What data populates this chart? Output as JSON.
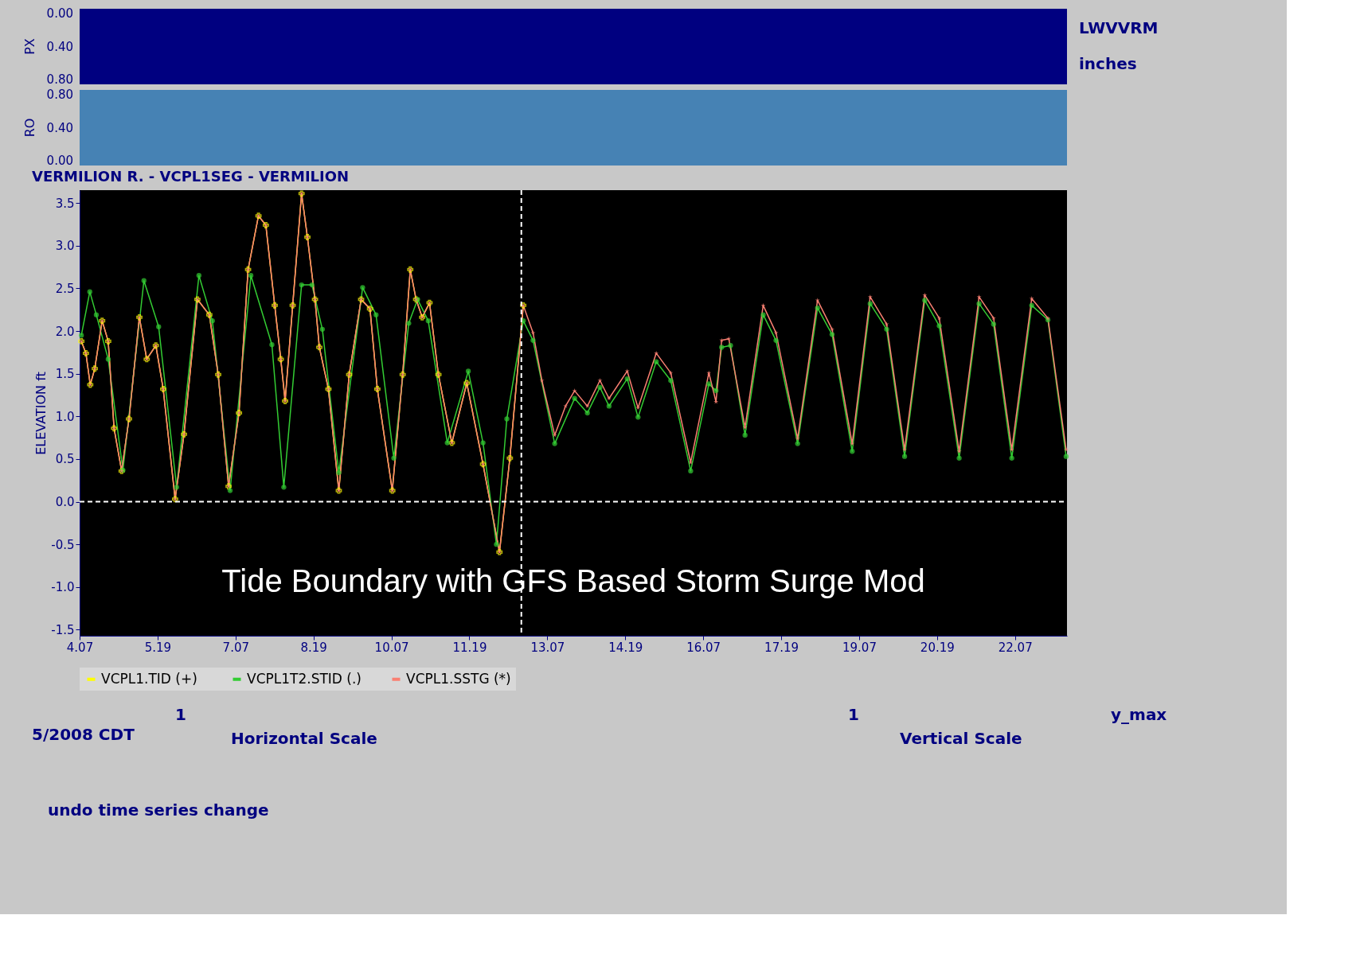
{
  "chart_data": [
    {
      "type": "other",
      "ylabel": "PX",
      "annotations": [
        "0.00",
        "0.40",
        "0.80",
        "LWVVRM",
        "inches"
      ]
    },
    {
      "type": "other",
      "ylabel": "RO",
      "annotations": [
        "0.80",
        "0.40",
        "0.00"
      ]
    },
    {
      "type": "line",
      "title": "VERMILION R.   - VCPL1SEG -  VERMILION",
      "ylabel": "ELEVATION ft",
      "xlim": [
        "2008-05-04T07:00",
        "2008-05-23T07:00"
      ],
      "xticks": [
        {
          "value": "2008-05-04T07:00",
          "label": "4.07"
        },
        {
          "value": "2008-05-05T19:00",
          "label": "5.19"
        },
        {
          "value": "2008-05-07T07:00",
          "label": "7.07"
        },
        {
          "value": "2008-05-08T19:00",
          "label": "8.19"
        },
        {
          "value": "2008-05-10T07:00",
          "label": "10.07"
        },
        {
          "value": "2008-05-11T19:00",
          "label": "11.19"
        },
        {
          "value": "2008-05-13T07:00",
          "label": "13.07"
        },
        {
          "value": "2008-05-14T19:00",
          "label": "14.19"
        },
        {
          "value": "2008-05-16T07:00",
          "label": "16.07"
        },
        {
          "value": "2008-05-17T19:00",
          "label": "17.19"
        },
        {
          "value": "2008-05-19T07:00",
          "label": "19.07"
        },
        {
          "value": "2008-05-20T19:00",
          "label": "20.19"
        },
        {
          "value": "2008-05-22T07:00",
          "label": "22.07"
        }
      ],
      "ylim": [
        -1.57,
        3.65
      ],
      "yticks": [
        {
          "value": -1.5,
          "label": "-1.5"
        },
        {
          "value": -1,
          "label": "-1.0"
        },
        {
          "value": -0.5,
          "label": "-0.5"
        },
        {
          "value": 0,
          "label": "0.0"
        },
        {
          "value": 0.5,
          "label": "0.5"
        },
        {
          "value": 1,
          "label": "1.0"
        },
        {
          "value": 1.5,
          "label": "1.5"
        },
        {
          "value": 2,
          "label": "2.0"
        },
        {
          "value": 2.5,
          "label": "2.5"
        },
        {
          "value": 3,
          "label": "3.0"
        },
        {
          "value": 3.5,
          "label": "3.5"
        }
      ],
      "grid": false,
      "legend": "bottom",
      "line_style": "solid",
      "ref_lines": [
        {
          "axis": "y",
          "value": 0,
          "color": "#ffffff",
          "line_style": "dashed"
        },
        {
          "axis": "x",
          "value": "2008-05-12T19:00",
          "color": "#ffffff",
          "line_style": "dashed"
        }
      ],
      "series": [
        {
          "name": "VCPL1.TID  (+)",
          "color": "#ffff00",
          "marker": "cross",
          "x": [
            "2008-05-04T07:48",
            "2008-05-04T09:54",
            "2008-05-04T11:54",
            "2008-05-04T14:00",
            "2008-05-04T17:24",
            "2008-05-04T20:12",
            "2008-05-04T22:54",
            "2008-05-05T02:24",
            "2008-05-05T05:48",
            "2008-05-05T10:36",
            "2008-05-05T14:00",
            "2008-05-05T18:12",
            "2008-05-05T21:36",
            "2008-05-06T03:06",
            "2008-05-06T07:12",
            "2008-05-06T13:24",
            "2008-05-06T18:54",
            "2008-05-06T23:00",
            "2008-05-07T03:48",
            "2008-05-07T08:36",
            "2008-05-07T12:48",
            "2008-05-07T17:36",
            "2008-05-07T21:00",
            "2008-05-08T01:06",
            "2008-05-08T03:54",
            "2008-05-08T05:54",
            "2008-05-08T09:24",
            "2008-05-08T13:30",
            "2008-05-08T16:12",
            "2008-05-08T19:42",
            "2008-05-08T21:42",
            "2008-05-09T01:54",
            "2008-05-09T06:42",
            "2008-05-09T11:30",
            "2008-05-09T17:00",
            "2008-05-09T21:06",
            "2008-05-10T00:30",
            "2008-05-10T07:24",
            "2008-05-10T12:12",
            "2008-05-10T15:42",
            "2008-05-10T18:24",
            "2008-05-10T21:12",
            "2008-05-11T00:36",
            "2008-05-11T04:42",
            "2008-05-11T10:54",
            "2008-05-11T17:48",
            "2008-05-12T01:18",
            "2008-05-12T08:54",
            "2008-05-12T13:42",
            "2008-05-12T19:54"
          ],
          "values": [
            1.88,
            1.74,
            1.37,
            1.56,
            2.12,
            1.88,
            0.86,
            0.36,
            0.97,
            2.16,
            1.67,
            1.83,
            1.32,
            0.03,
            0.79,
            2.37,
            2.19,
            1.49,
            0.18,
            1.04,
            2.72,
            3.35,
            3.24,
            2.3,
            1.67,
            1.18,
            2.3,
            3.61,
            3.1,
            2.37,
            1.81,
            1.32,
            0.13,
            1.49,
            2.37,
            2.26,
            1.32,
            0.13,
            1.49,
            2.72,
            2.37,
            2.16,
            2.33,
            1.49,
            0.69,
            1.39,
            0.44,
            -0.59,
            0.51,
            2.3
          ]
        },
        {
          "name": "VCPL1T2.STID (.)",
          "color": "#33cc33",
          "marker": "circle",
          "x": [
            "2008-05-04T07:48",
            "2008-05-04T11:42",
            "2008-05-04T14:42",
            "2008-05-04T20:12",
            "2008-05-05T03:00",
            "2008-05-05T12:42",
            "2008-05-05T19:30",
            "2008-05-06T03:48",
            "2008-05-06T14:06",
            "2008-05-06T20:18",
            "2008-05-07T04:30",
            "2008-05-07T14:06",
            "2008-05-07T23:48",
            "2008-05-08T05:18",
            "2008-05-08T13:30",
            "2008-05-08T18:18",
            "2008-05-08T23:06",
            "2008-05-09T06:42",
            "2008-05-09T17:42",
            "2008-05-09T23:54",
            "2008-05-10T08:06",
            "2008-05-10T15:00",
            "2008-05-10T19:06",
            "2008-05-11T00:00",
            "2008-05-11T08:48",
            "2008-05-11T18:30",
            "2008-05-12T01:18",
            "2008-05-12T07:30",
            "2008-05-12T12:18",
            "2008-05-12T19:54",
            "2008-05-13T00:24",
            "2008-05-13T10:24",
            "2008-05-13T19:36",
            "2008-05-14T01:30",
            "2008-05-14T07:18",
            "2008-05-14T11:30",
            "2008-05-14T19:54",
            "2008-05-15T00:54",
            "2008-05-15T09:18",
            "2008-05-15T16:00",
            "2008-05-16T01:12",
            "2008-05-16T09:36",
            "2008-05-16T12:54",
            "2008-05-16T15:30",
            "2008-05-16T19:36",
            "2008-05-17T02:18",
            "2008-05-17T10:42",
            "2008-05-17T16:36",
            "2008-05-18T02:36",
            "2008-05-18T11:48",
            "2008-05-18T18:30",
            "2008-05-19T03:48",
            "2008-05-19T12:06",
            "2008-05-19T19:42",
            "2008-05-20T04:00",
            "2008-05-20T13:18",
            "2008-05-20T20:00",
            "2008-05-21T05:12",
            "2008-05-21T14:24",
            "2008-05-21T21:06",
            "2008-05-22T05:30",
            "2008-05-22T14:42",
            "2008-05-22T22:12",
            "2008-05-23T06:36"
          ],
          "values": [
            1.95,
            2.46,
            2.19,
            1.67,
            0.37,
            2.59,
            2.05,
            0.17,
            2.65,
            2.12,
            0.13,
            2.65,
            1.84,
            0.17,
            2.54,
            2.54,
            2.02,
            0.34,
            2.51,
            2.19,
            0.51,
            2.09,
            2.37,
            2.12,
            0.69,
            1.53,
            0.69,
            -0.5,
            0.97,
            2.12,
            1.89,
            0.68,
            1.21,
            1.04,
            1.34,
            1.12,
            1.44,
            0.99,
            1.64,
            1.42,
            0.36,
            1.38,
            1.3,
            1.81,
            1.83,
            0.78,
            2.19,
            1.89,
            0.68,
            2.27,
            1.96,
            0.59,
            2.32,
            2.02,
            0.53,
            2.36,
            2.06,
            0.51,
            2.32,
            2.08,
            0.51,
            2.3,
            2.13,
            0.53
          ]
        },
        {
          "name": "VCPL1.SSTG (*)",
          "color": "#fa8072",
          "marker": "star",
          "x": [
            "2008-05-04T07:48",
            "2008-05-04T09:54",
            "2008-05-04T11:54",
            "2008-05-04T14:00",
            "2008-05-04T17:24",
            "2008-05-04T20:12",
            "2008-05-04T22:54",
            "2008-05-05T02:24",
            "2008-05-05T05:48",
            "2008-05-05T10:36",
            "2008-05-05T14:00",
            "2008-05-05T18:12",
            "2008-05-05T21:36",
            "2008-05-06T03:06",
            "2008-05-06T07:12",
            "2008-05-06T13:24",
            "2008-05-06T18:54",
            "2008-05-06T23:00",
            "2008-05-07T03:48",
            "2008-05-07T08:36",
            "2008-05-07T12:48",
            "2008-05-07T17:36",
            "2008-05-07T21:00",
            "2008-05-08T01:06",
            "2008-05-08T03:54",
            "2008-05-08T05:54",
            "2008-05-08T09:24",
            "2008-05-08T13:30",
            "2008-05-08T16:12",
            "2008-05-08T19:42",
            "2008-05-08T21:42",
            "2008-05-09T01:54",
            "2008-05-09T06:42",
            "2008-05-09T11:30",
            "2008-05-09T17:00",
            "2008-05-09T21:06",
            "2008-05-10T00:30",
            "2008-05-10T07:24",
            "2008-05-10T12:12",
            "2008-05-10T15:42",
            "2008-05-10T18:24",
            "2008-05-10T21:12",
            "2008-05-11T00:36",
            "2008-05-11T04:42",
            "2008-05-11T10:54",
            "2008-05-11T17:48",
            "2008-05-12T01:18",
            "2008-05-12T08:54",
            "2008-05-12T13:42",
            "2008-05-12T19:54",
            "2008-05-13T00:24",
            "2008-05-13T04:30",
            "2008-05-13T10:24",
            "2008-05-13T15:24",
            "2008-05-13T19:36",
            "2008-05-14T01:30",
            "2008-05-14T07:18",
            "2008-05-14T11:30",
            "2008-05-14T19:54",
            "2008-05-15T00:54",
            "2008-05-15T09:18",
            "2008-05-15T16:00",
            "2008-05-16T01:12",
            "2008-05-16T09:36",
            "2008-05-16T12:54",
            "2008-05-16T15:30",
            "2008-05-16T18:48",
            "2008-05-17T02:18",
            "2008-05-17T10:42",
            "2008-05-17T16:36",
            "2008-05-18T02:36",
            "2008-05-18T11:48",
            "2008-05-18T18:30",
            "2008-05-19T03:48",
            "2008-05-19T12:06",
            "2008-05-19T19:42",
            "2008-05-20T04:00",
            "2008-05-20T13:18",
            "2008-05-20T20:00",
            "2008-05-21T05:12",
            "2008-05-21T14:24",
            "2008-05-21T21:06",
            "2008-05-22T05:30",
            "2008-05-22T14:42",
            "2008-05-22T22:12",
            "2008-05-23T06:36"
          ],
          "values": [
            1.88,
            1.74,
            1.37,
            1.56,
            2.12,
            1.88,
            0.86,
            0.36,
            0.97,
            2.16,
            1.67,
            1.83,
            1.32,
            0.03,
            0.79,
            2.37,
            2.19,
            1.49,
            0.18,
            1.04,
            2.72,
            3.35,
            3.24,
            2.3,
            1.67,
            1.18,
            2.3,
            3.61,
            3.1,
            2.37,
            1.81,
            1.32,
            0.13,
            1.49,
            2.37,
            2.26,
            1.32,
            0.13,
            1.49,
            2.72,
            2.37,
            2.16,
            2.33,
            1.49,
            0.69,
            1.39,
            0.44,
            -0.59,
            0.51,
            2.3,
            1.98,
            1.42,
            0.78,
            1.12,
            1.3,
            1.12,
            1.42,
            1.21,
            1.53,
            1.1,
            1.74,
            1.51,
            0.46,
            1.51,
            1.17,
            1.89,
            1.91,
            0.87,
            2.3,
            1.98,
            0.74,
            2.36,
            2.02,
            0.68,
            2.4,
            2.08,
            0.61,
            2.42,
            2.15,
            0.59,
            2.4,
            2.15,
            0.61,
            2.38,
            2.15,
            0.61
          ]
        }
      ],
      "annotations": [
        "Tide Boundary with GFS Based Storm Surge Mod",
        "5/2008 CDT",
        "1",
        "Horizontal Scale",
        "1",
        "Vertical Scale",
        "y_max",
        "undo time series change"
      ]
    }
  ]
}
